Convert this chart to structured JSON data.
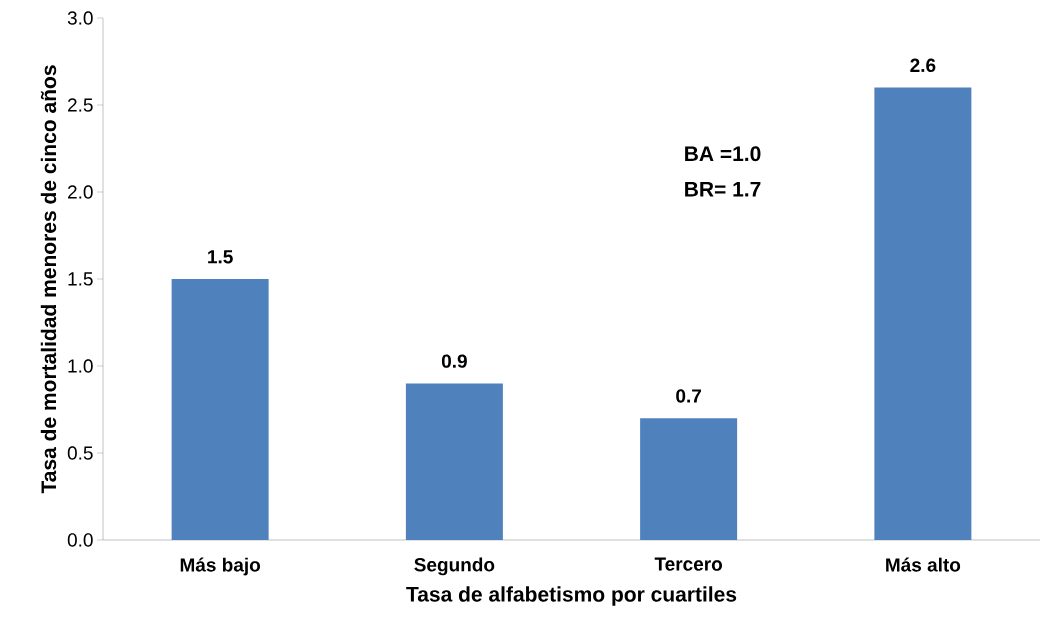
{
  "chart_data": {
    "type": "bar",
    "xlabel": "Tasa de alfabetismo por cuartiles",
    "ylabel": "Tasa de mortalidad menores de cinco años",
    "categories": [
      "Más bajo",
      "Segundo",
      "Tercero",
      "Más alto"
    ],
    "values": [
      1.5,
      0.9,
      0.7,
      2.6
    ],
    "color": "#4f81bd",
    "data_labels": true,
    "ylim": [
      0,
      3.0
    ],
    "yticks": [
      {
        "value": 0,
        "label": "0.0"
      },
      {
        "value": 0.5,
        "label": "0.5"
      },
      {
        "value": 1.0,
        "label": "1.0"
      },
      {
        "value": 1.5,
        "label": "1.5"
      },
      {
        "value": 2.0,
        "label": "2.0"
      },
      {
        "value": 2.5,
        "label": "2.5"
      },
      {
        "value": 3.0,
        "label": "3.0"
      }
    ],
    "annotations": [
      "BA =1.0",
      "BR= 1.7"
    ]
  }
}
